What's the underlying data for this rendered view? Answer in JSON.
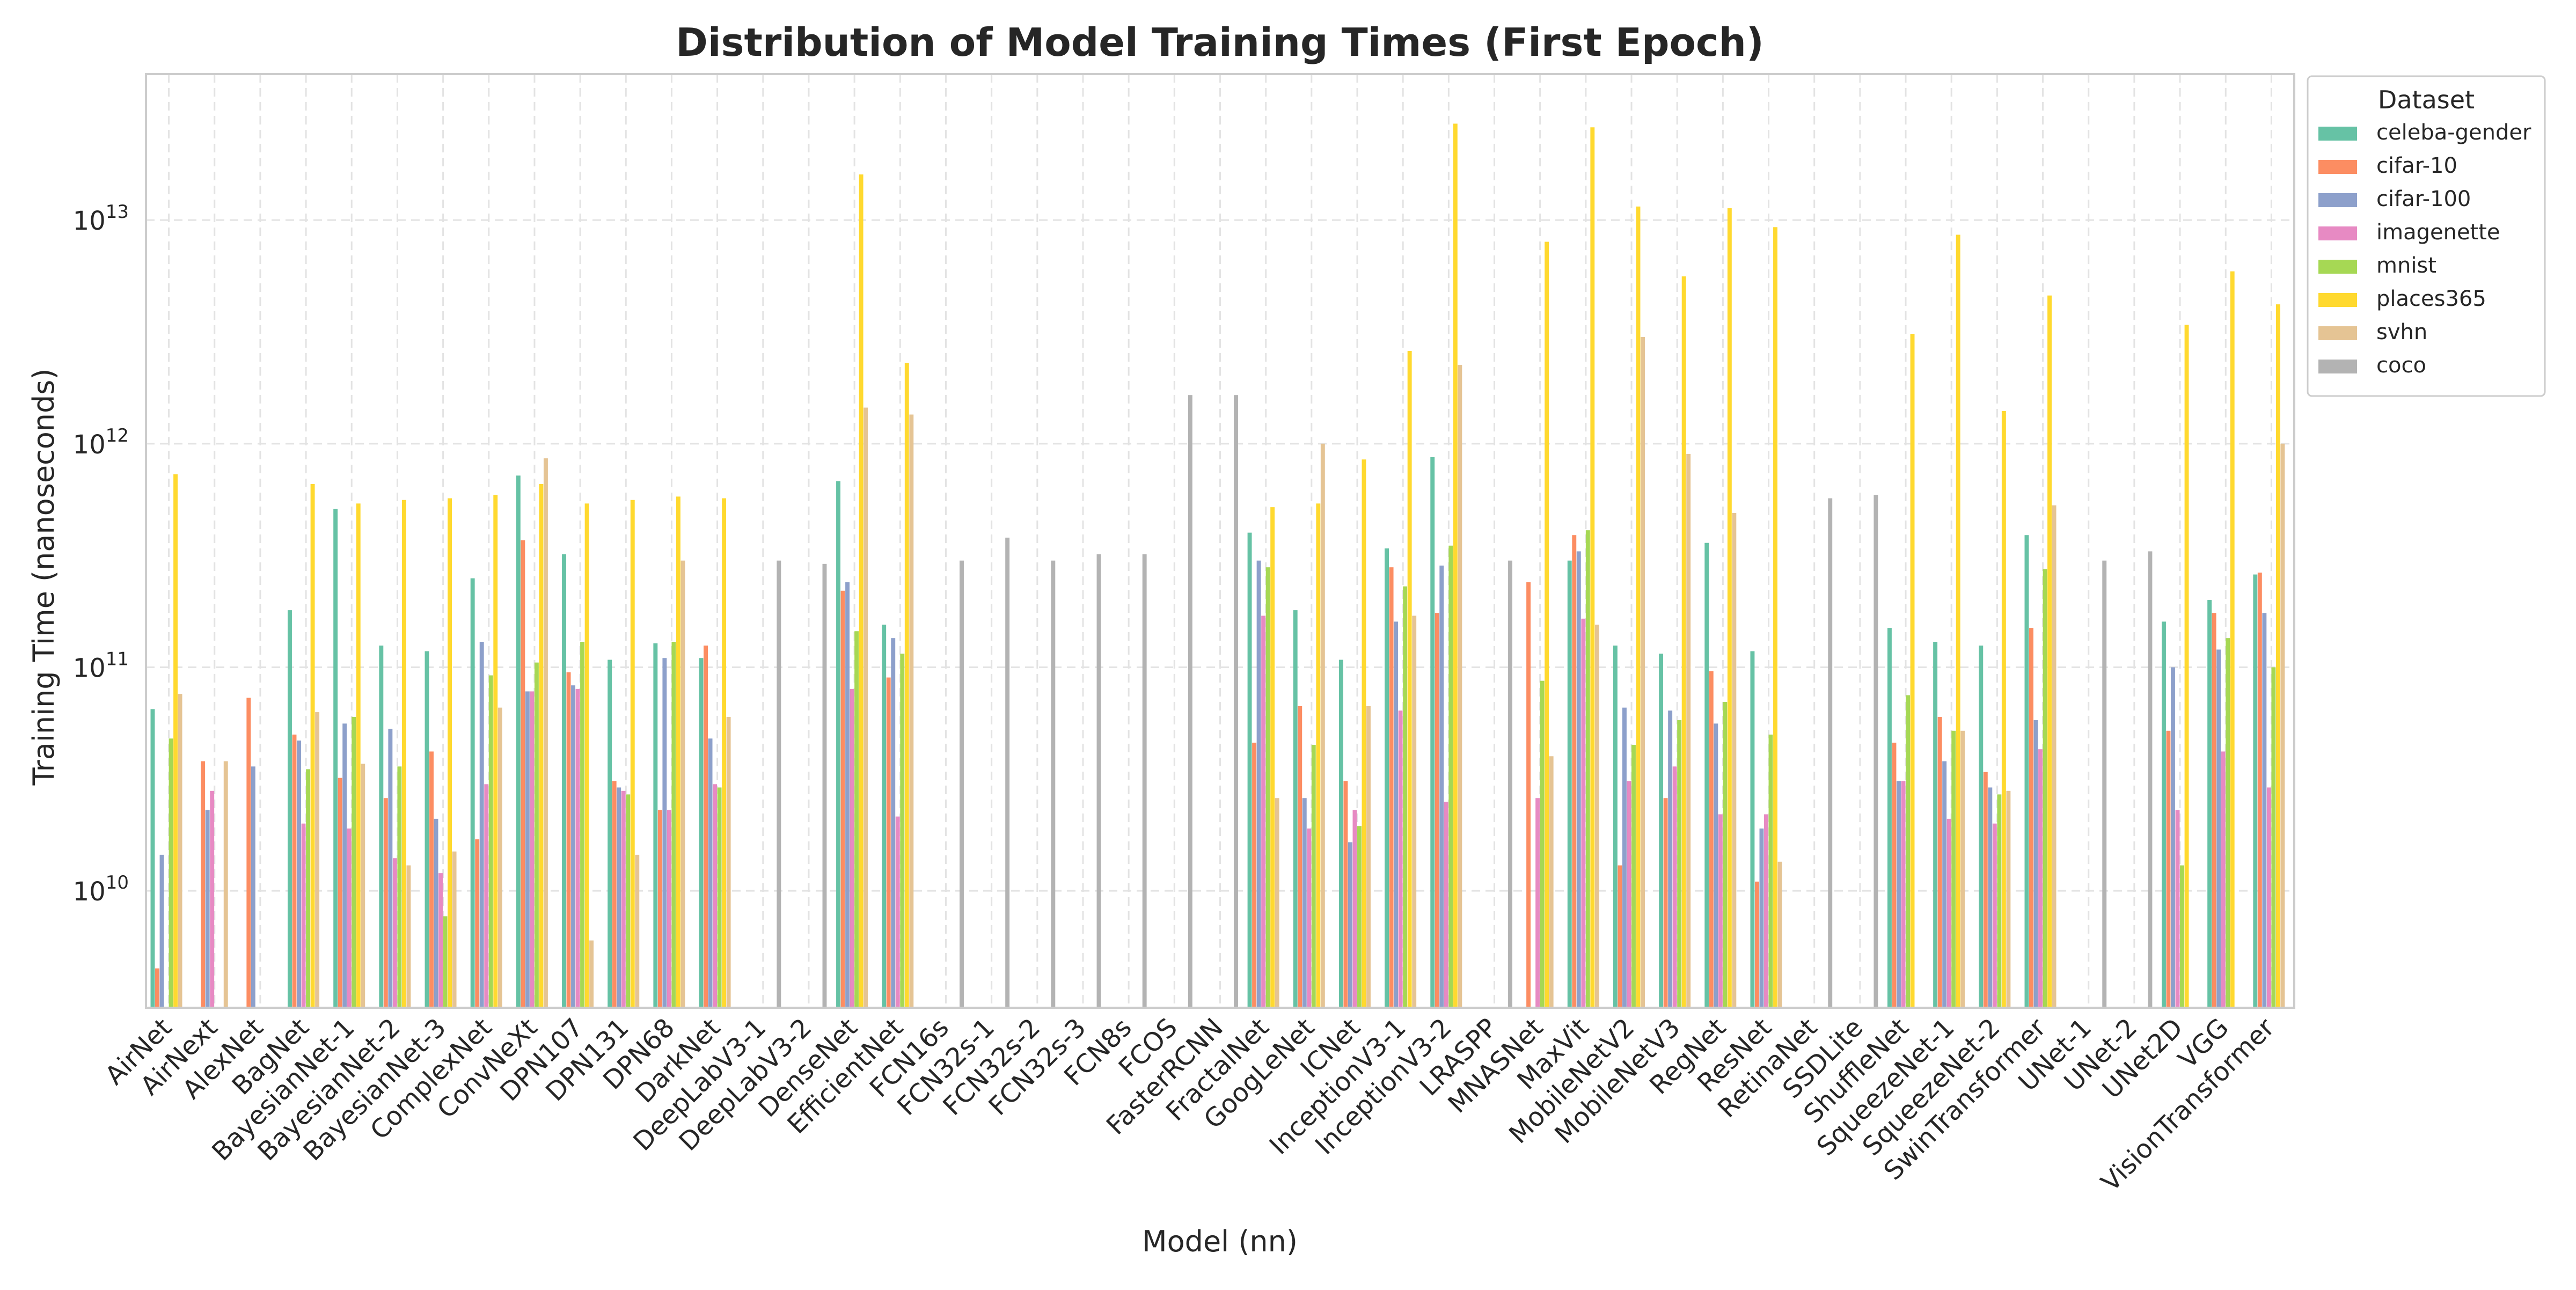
{
  "chart_data": {
    "type": "bar",
    "title": "Distribution of Model Training Times (First Epoch)",
    "xlabel": "Model (nn)",
    "ylabel": "Training Time (nanoseconds)",
    "yscale": "log",
    "ylim": [
      3000000000.0,
      45000000000000.0
    ],
    "yticks": [
      10000000000.0,
      100000000000.0,
      1000000000000.0,
      10000000000000.0
    ],
    "ytick_labels": [
      {
        "base": "10",
        "exp": "10"
      },
      {
        "base": "10",
        "exp": "11"
      },
      {
        "base": "10",
        "exp": "12"
      },
      {
        "base": "10",
        "exp": "13"
      }
    ],
    "grid": true,
    "legend_title": "Dataset",
    "legend_position": "upper-right-outside",
    "categories": [
      "AirNet",
      "AirNext",
      "AlexNet",
      "BagNet",
      "BayesianNet-1",
      "BayesianNet-2",
      "BayesianNet-3",
      "ComplexNet",
      "ConvNeXt",
      "DPN107",
      "DPN131",
      "DPN68",
      "DarkNet",
      "DeepLabV3-1",
      "DeepLabV3-2",
      "DenseNet",
      "EfficientNet",
      "FCN16s",
      "FCN32s-1",
      "FCN32s-2",
      "FCN32s-3",
      "FCN8s",
      "FCOS",
      "FasterRCNN",
      "FractalNet",
      "GoogLeNet",
      "ICNet",
      "InceptionV3-1",
      "InceptionV3-2",
      "LRASPP",
      "MNASNet",
      "MaxVit",
      "MobileNetV2",
      "MobileNetV3",
      "RegNet",
      "ResNet",
      "RetinaNet",
      "SSDLite",
      "ShuffleNet",
      "SqueezeNet-1",
      "SqueezeNet-2",
      "SwinTransformer",
      "UNet-1",
      "UNet-2",
      "UNet2D",
      "VGG",
      "VisionTransformer"
    ],
    "series": [
      {
        "name": "celeba-gender",
        "color": "#66c2a5",
        "values": [
          65000000000.0,
          null,
          null,
          180000000000.0,
          510000000000.0,
          125000000000.0,
          118000000000.0,
          250000000000.0,
          720000000000.0,
          320000000000.0,
          108000000000.0,
          128000000000.0,
          110000000000.0,
          null,
          null,
          680000000000.0,
          155000000000.0,
          null,
          null,
          null,
          null,
          null,
          null,
          null,
          400000000000.0,
          180000000000.0,
          108000000000.0,
          340000000000.0,
          870000000000.0,
          null,
          null,
          300000000000.0,
          125000000000.0,
          115000000000.0,
          360000000000.0,
          118000000000.0,
          null,
          null,
          150000000000.0,
          130000000000.0,
          125000000000.0,
          390000000000.0,
          null,
          null,
          160000000000.0,
          200000000000.0,
          260000000000.0
        ]
      },
      {
        "name": "cifar-10",
        "color": "#fc8d62",
        "values": [
          4500000000.0,
          38000000000.0,
          73000000000.0,
          50000000000.0,
          32000000000.0,
          26000000000.0,
          42000000000.0,
          17000000000.0,
          370000000000.0,
          95000000000.0,
          31000000000.0,
          23000000000.0,
          125000000000.0,
          null,
          null,
          220000000000.0,
          90000000000.0,
          null,
          null,
          null,
          null,
          null,
          null,
          null,
          46000000000.0,
          67000000000.0,
          31000000000.0,
          280000000000.0,
          175000000000.0,
          null,
          240000000000.0,
          390000000000.0,
          13000000000.0,
          26000000000.0,
          96000000000.0,
          11000000000.0,
          null,
          null,
          46000000000.0,
          60000000000.0,
          34000000000.0,
          150000000000.0,
          null,
          null,
          52000000000.0,
          175000000000.0,
          265000000000.0
        ]
      },
      {
        "name": "cifar-100",
        "color": "#8da0cb",
        "values": [
          14500000000.0,
          23000000000.0,
          36000000000.0,
          47000000000.0,
          56000000000.0,
          53000000000.0,
          21000000000.0,
          130000000000.0,
          78000000000.0,
          83000000000.0,
          29000000000.0,
          110000000000.0,
          48000000000.0,
          null,
          null,
          240000000000.0,
          135000000000.0,
          null,
          null,
          null,
          null,
          null,
          null,
          null,
          300000000000.0,
          26000000000.0,
          16500000000.0,
          160000000000.0,
          285000000000.0,
          null,
          null,
          330000000000.0,
          66000000000.0,
          64000000000.0,
          56000000000.0,
          19000000000.0,
          null,
          null,
          31000000000.0,
          38000000000.0,
          29000000000.0,
          58000000000.0,
          null,
          null,
          100000000000.0,
          120000000000.0,
          175000000000.0
        ]
      },
      {
        "name": "imagenette",
        "color": "#e78ac3",
        "values": [
          null,
          28000000000.0,
          null,
          20000000000.0,
          19000000000.0,
          14000000000.0,
          12000000000.0,
          30000000000.0,
          78000000000.0,
          80000000000.0,
          28000000000.0,
          23000000000.0,
          30000000000.0,
          null,
          null,
          80000000000.0,
          21500000000.0,
          null,
          null,
          null,
          null,
          null,
          null,
          null,
          170000000000.0,
          19000000000.0,
          23000000000.0,
          64000000000.0,
          25000000000.0,
          null,
          26000000000.0,
          165000000000.0,
          31000000000.0,
          36000000000.0,
          22000000000.0,
          22000000000.0,
          null,
          null,
          31000000000.0,
          21000000000.0,
          20000000000.0,
          43000000000.0,
          null,
          null,
          23000000000.0,
          42000000000.0,
          29000000000.0
        ]
      },
      {
        "name": "mnist",
        "color": "#a6d854",
        "values": [
          48000000000.0,
          null,
          null,
          35000000000.0,
          60000000000.0,
          36000000000.0,
          7700000000.0,
          92000000000.0,
          105000000000.0,
          130000000000.0,
          27000000000.0,
          130000000000.0,
          29000000000.0,
          null,
          null,
          145000000000.0,
          115000000000.0,
          null,
          null,
          null,
          null,
          null,
          null,
          null,
          280000000000.0,
          45000000000.0,
          19500000000.0,
          230000000000.0,
          350000000000.0,
          null,
          87000000000.0,
          410000000000.0,
          45000000000.0,
          58000000000.0,
          70000000000.0,
          50000000000.0,
          null,
          null,
          75000000000.0,
          52000000000.0,
          27000000000.0,
          275000000000.0,
          null,
          null,
          13000000000.0,
          135000000000.0,
          100000000000.0
        ]
      },
      {
        "name": "places365",
        "color": "#ffd92f",
        "values": [
          730000000000.0,
          null,
          null,
          660000000000.0,
          540000000000.0,
          560000000000.0,
          570000000000.0,
          590000000000.0,
          660000000000.0,
          540000000000.0,
          560000000000.0,
          580000000000.0,
          570000000000.0,
          null,
          null,
          16000000000000.0,
          2300000000000.0,
          null,
          null,
          null,
          null,
          null,
          null,
          null,
          520000000000.0,
          540000000000.0,
          850000000000.0,
          2600000000000.0,
          27000000000000.0,
          null,
          8000000000000.0,
          26000000000000.0,
          11500000000000.0,
          5600000000000.0,
          11300000000000.0,
          9300000000000.0,
          null,
          null,
          3100000000000.0,
          8600000000000.0,
          1400000000000.0,
          4600000000000.0,
          null,
          null,
          3400000000000.0,
          5900000000000.0,
          4200000000000.0
        ]
      },
      {
        "name": "svhn",
        "color": "#e5c494",
        "values": [
          76000000000.0,
          38000000000.0,
          null,
          63000000000.0,
          37000000000.0,
          13000000000.0,
          15000000000.0,
          66000000000.0,
          860000000000.0,
          6000000000.0,
          14500000000.0,
          300000000000.0,
          60000000000.0,
          null,
          null,
          1450000000000.0,
          1350000000000.0,
          null,
          null,
          null,
          null,
          null,
          null,
          null,
          26000000000.0,
          1000000000000.0,
          67000000000.0,
          170000000000.0,
          2250000000000.0,
          null,
          40000000000.0,
          155000000000.0,
          3000000000000.0,
          900000000000.0,
          490000000000.0,
          13500000000.0,
          null,
          null,
          null,
          52000000000.0,
          28000000000.0,
          530000000000.0,
          null,
          null,
          null,
          null,
          1000000000000.0
        ]
      },
      {
        "name": "coco",
        "color": "#b3b3b3",
        "values": [
          null,
          null,
          null,
          null,
          null,
          null,
          null,
          null,
          null,
          null,
          null,
          null,
          null,
          300000000000.0,
          290000000000.0,
          null,
          null,
          300000000000.0,
          380000000000.0,
          300000000000.0,
          320000000000.0,
          320000000000.0,
          1650000000000.0,
          1650000000000.0,
          null,
          null,
          null,
          null,
          null,
          300000000000.0,
          null,
          null,
          null,
          null,
          null,
          null,
          570000000000.0,
          590000000000.0,
          null,
          null,
          null,
          null,
          300000000000.0,
          330000000000.0,
          null,
          null,
          null
        ]
      }
    ]
  }
}
